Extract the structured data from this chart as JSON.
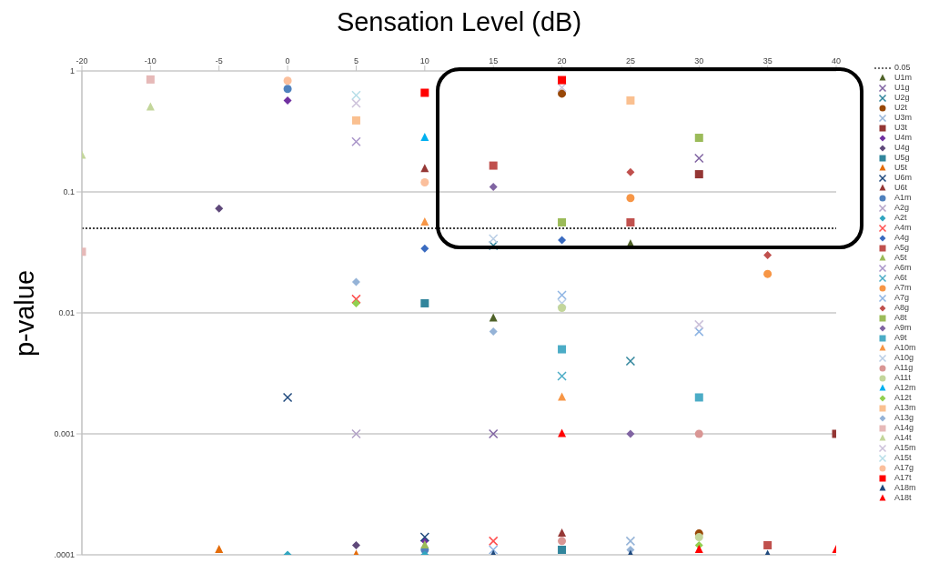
{
  "chart_data": {
    "type": "scatter",
    "xlabel": "Sensation Level (dB)",
    "ylabel": "p-value",
    "categories": [
      "-20",
      "-10",
      "-5",
      "0",
      "5",
      "10",
      "15",
      "20",
      "25",
      "30",
      "35",
      "40"
    ],
    "log": "y",
    "ylim": [
      0.0001,
      1
    ],
    "yticks": [
      {
        "value": 0.0001,
        "label": ".0001"
      },
      0.001,
      0.01,
      0.1,
      1
    ],
    "grid": "y",
    "legend": "right",
    "ref_lines": [
      {
        "axis": "y",
        "value": 0.05,
        "label": "0.05",
        "color": "#404040",
        "line_style": "dotted"
      }
    ],
    "series": [
      {
        "name": "U1m",
        "color": "#4f6228",
        "marker": "triangle",
        "values": [
          null,
          null,
          null,
          null,
          null,
          null,
          0.009,
          null,
          0.037,
          null,
          null,
          null
        ]
      },
      {
        "name": "U1g",
        "color": "#8064a2",
        "marker": "cross",
        "values": [
          null,
          null,
          null,
          null,
          null,
          null,
          0.001,
          null,
          null,
          0.19,
          null,
          null
        ]
      },
      {
        "name": "U2g",
        "color": "#31859c",
        "marker": "cross",
        "values": [
          null,
          null,
          null,
          null,
          null,
          null,
          0.036,
          null,
          0.004,
          null,
          null,
          null
        ]
      },
      {
        "name": "U2t",
        "color": "#984807",
        "marker": "circle",
        "values": [
          null,
          null,
          null,
          null,
          null,
          null,
          null,
          0.65,
          null,
          0.00015,
          null,
          null
        ]
      },
      {
        "name": "U3m",
        "color": "#95b3d7",
        "marker": "cross",
        "values": [
          null,
          null,
          null,
          null,
          null,
          null,
          null,
          null,
          0.00013,
          null,
          null,
          null
        ]
      },
      {
        "name": "U3t",
        "color": "#943634",
        "marker": "square",
        "values": [
          null,
          null,
          null,
          null,
          null,
          null,
          null,
          null,
          null,
          0.14,
          null,
          0.001
        ]
      },
      {
        "name": "U4m",
        "color": "#7030a0",
        "marker": "diamond",
        "values": [
          null,
          null,
          null,
          0.57,
          null,
          0.00013,
          null,
          null,
          null,
          null,
          null,
          null
        ]
      },
      {
        "name": "U4g",
        "color": "#5f497a",
        "marker": "diamond",
        "values": [
          null,
          null,
          0.073,
          null,
          0.00012,
          null,
          null,
          null,
          null,
          null,
          null,
          null
        ]
      },
      {
        "name": "U5g",
        "color": "#31859c",
        "marker": "square",
        "values": [
          null,
          null,
          null,
          null,
          null,
          0.012,
          null,
          0.00011,
          null,
          null,
          null,
          null
        ]
      },
      {
        "name": "U5t",
        "color": "#e46c0a",
        "marker": "triangle",
        "values": [
          null,
          null,
          0.00011,
          null,
          0.0001,
          null,
          null,
          null,
          null,
          null,
          null,
          null
        ]
      },
      {
        "name": "U6m",
        "color": "#1f497d",
        "marker": "cross",
        "values": [
          null,
          null,
          null,
          0.002,
          null,
          0.00014,
          null,
          null,
          null,
          null,
          null,
          null
        ]
      },
      {
        "name": "U6t",
        "color": "#953735",
        "marker": "triangle",
        "values": [
          null,
          null,
          null,
          null,
          null,
          0.155,
          null,
          0.00015,
          null,
          null,
          null,
          null
        ]
      },
      {
        "name": "A1m",
        "color": "#4f81bd",
        "marker": "circle",
        "values": [
          null,
          null,
          null,
          0.71,
          null,
          0.00011,
          null,
          null,
          null,
          null,
          null,
          null
        ]
      },
      {
        "name": "A2g",
        "color": "#b3a2c7",
        "marker": "cross",
        "values": [
          null,
          null,
          null,
          null,
          0.001,
          null,
          null,
          null,
          null,
          null,
          null,
          null
        ]
      },
      {
        "name": "A2t",
        "color": "#31a5c0",
        "marker": "diamond",
        "values": [
          null,
          null,
          null,
          0.0001,
          null,
          0.0001,
          null,
          null,
          null,
          null,
          null,
          null
        ]
      },
      {
        "name": "A4m",
        "color": "#ff5050",
        "marker": "cross",
        "values": [
          null,
          null,
          null,
          null,
          0.013,
          null,
          0.00013,
          null,
          null,
          null,
          null,
          null
        ]
      },
      {
        "name": "A4g",
        "color": "#3a6bc0",
        "marker": "diamond",
        "values": [
          null,
          null,
          null,
          null,
          null,
          0.034,
          null,
          0.04,
          null,
          null,
          null,
          null
        ]
      },
      {
        "name": "A5g",
        "color": "#c0504d",
        "marker": "square",
        "values": [
          null,
          null,
          null,
          null,
          null,
          null,
          0.165,
          null,
          0.056,
          null,
          0.00012,
          null
        ]
      },
      {
        "name": "A5t",
        "color": "#9bbb59",
        "marker": "triangle",
        "values": [
          null,
          null,
          null,
          null,
          null,
          0.00012,
          null,
          null,
          null,
          null,
          null,
          null
        ]
      },
      {
        "name": "A6m",
        "color": "#a995c9",
        "marker": "cross",
        "values": [
          null,
          null,
          null,
          null,
          0.26,
          null,
          null,
          null,
          null,
          null,
          null,
          null
        ]
      },
      {
        "name": "A6t",
        "color": "#4bacc6",
        "marker": "cross",
        "values": [
          null,
          null,
          null,
          null,
          null,
          null,
          null,
          0.003,
          null,
          null,
          null,
          null
        ]
      },
      {
        "name": "A7m",
        "color": "#f79646",
        "marker": "circle",
        "values": [
          null,
          null,
          null,
          null,
          null,
          null,
          null,
          null,
          0.089,
          null,
          0.021,
          null
        ]
      },
      {
        "name": "A7g",
        "color": "#8eb4e3",
        "marker": "cross",
        "values": [
          null,
          null,
          null,
          null,
          null,
          null,
          0.00011,
          0.014,
          null,
          0.007,
          null,
          null
        ]
      },
      {
        "name": "A8g",
        "color": "#c0504d",
        "marker": "diamond",
        "values": [
          null,
          null,
          null,
          null,
          null,
          null,
          null,
          null,
          0.146,
          null,
          0.03,
          null
        ]
      },
      {
        "name": "A8t",
        "color": "#9bbb59",
        "marker": "square",
        "values": [
          null,
          null,
          null,
          null,
          null,
          null,
          null,
          0.056,
          null,
          0.28,
          null,
          null
        ]
      },
      {
        "name": "A9m",
        "color": "#8064a2",
        "marker": "diamond",
        "values": [
          null,
          null,
          null,
          null,
          null,
          null,
          0.11,
          null,
          0.001,
          null,
          null,
          null
        ]
      },
      {
        "name": "A9t",
        "color": "#4bacc6",
        "marker": "square",
        "values": [
          null,
          null,
          null,
          null,
          null,
          null,
          null,
          0.005,
          null,
          0.002,
          null,
          null
        ]
      },
      {
        "name": "A10m",
        "color": "#f79646",
        "marker": "triangle",
        "values": [
          null,
          null,
          null,
          null,
          null,
          0.056,
          null,
          0.002,
          null,
          null,
          null,
          null
        ]
      },
      {
        "name": "A10g",
        "color": "#b9cde5",
        "marker": "cross",
        "values": [
          null,
          null,
          null,
          null,
          null,
          null,
          0.041,
          0.012,
          null,
          null,
          null,
          null
        ]
      },
      {
        "name": "A11g",
        "color": "#d99694",
        "marker": "circle",
        "values": [
          null,
          null,
          null,
          null,
          null,
          null,
          null,
          0.00013,
          null,
          0.001,
          null,
          null
        ]
      },
      {
        "name": "A11t",
        "color": "#c3d69b",
        "marker": "circle",
        "values": [
          null,
          null,
          null,
          null,
          null,
          null,
          null,
          0.011,
          null,
          0.00014,
          null,
          null
        ]
      },
      {
        "name": "A12m",
        "color": "#00b0f0",
        "marker": "triangle",
        "values": [
          null,
          null,
          null,
          null,
          null,
          0.28,
          null,
          null,
          null,
          null,
          null,
          null
        ]
      },
      {
        "name": "A12t",
        "color": "#92d050",
        "marker": "diamond",
        "values": [
          null,
          null,
          null,
          null,
          0.012,
          null,
          null,
          null,
          null,
          0.00012,
          null,
          null
        ]
      },
      {
        "name": "A13m",
        "color": "#fac090",
        "marker": "square",
        "values": [
          null,
          null,
          null,
          null,
          0.39,
          null,
          null,
          null,
          0.57,
          null,
          null,
          null
        ]
      },
      {
        "name": "A13g",
        "color": "#95b3d7",
        "marker": "diamond",
        "values": [
          null,
          null,
          null,
          null,
          0.018,
          null,
          0.007,
          null,
          0.00011,
          null,
          null,
          null
        ]
      },
      {
        "name": "A14g",
        "color": "#e6b9b8",
        "marker": "square",
        "values": [
          0.032,
          0.85,
          null,
          null,
          null,
          null,
          null,
          null,
          null,
          null,
          null,
          null
        ]
      },
      {
        "name": "A14t",
        "color": "#c3d69b",
        "marker": "triangle",
        "values": [
          0.2,
          0.5,
          null,
          null,
          null,
          null,
          null,
          null,
          null,
          null,
          null,
          null
        ]
      },
      {
        "name": "A15m",
        "color": "#ccc1da",
        "marker": "cross",
        "values": [
          null,
          null,
          null,
          null,
          0.54,
          null,
          null,
          0.73,
          null,
          0.008,
          null,
          null
        ]
      },
      {
        "name": "A15t",
        "color": "#b7dee8",
        "marker": "cross",
        "values": [
          null,
          null,
          null,
          null,
          0.63,
          null,
          null,
          null,
          null,
          null,
          null,
          null
        ]
      },
      {
        "name": "A17g",
        "color": "#fbbf9c",
        "marker": "circle",
        "values": [
          null,
          null,
          null,
          0.83,
          null,
          0.12,
          null,
          null,
          null,
          null,
          null,
          null
        ]
      },
      {
        "name": "A17t",
        "color": "#ff0000",
        "marker": "square",
        "values": [
          null,
          null,
          null,
          null,
          null,
          0.66,
          null,
          0.84,
          null,
          null,
          null,
          null
        ]
      },
      {
        "name": "A18m",
        "color": "#1f497d",
        "marker": "triangle",
        "values": [
          null,
          null,
          null,
          null,
          null,
          null,
          0.0001,
          null,
          0.0001,
          null,
          0.0001,
          null
        ]
      },
      {
        "name": "A18t",
        "color": "#ff0000",
        "marker": "triangle",
        "values": [
          null,
          null,
          null,
          null,
          null,
          null,
          null,
          0.001,
          null,
          0.00011,
          null,
          0.00011
        ]
      }
    ]
  }
}
